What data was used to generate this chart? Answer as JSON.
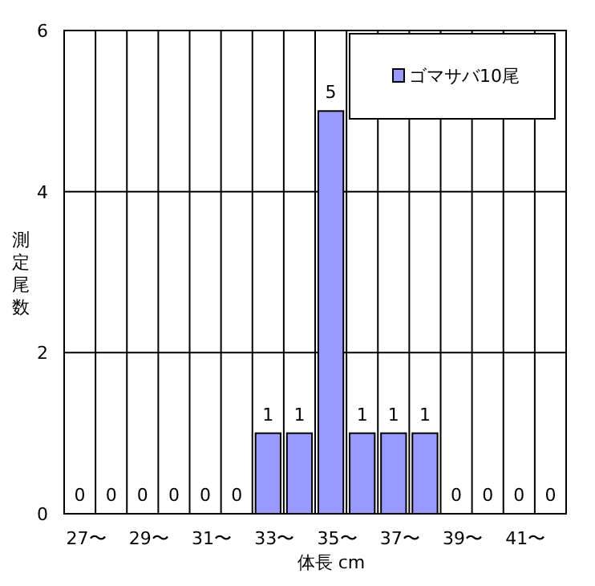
{
  "chart_data": {
    "type": "bar",
    "xlabel": "体長 cm",
    "ylabel": "測定尾数",
    "categories": [
      "27〜",
      null,
      "29〜",
      null,
      "31〜",
      null,
      "33〜",
      null,
      "35〜",
      null,
      "37〜",
      null,
      "39〜",
      null,
      "41〜",
      null
    ],
    "series": [
      {
        "name": "ゴマサバ10尾",
        "color": "#9999ff",
        "values": [
          0,
          0,
          0,
          0,
          0,
          0,
          1,
          1,
          5,
          1,
          1,
          1,
          0,
          0,
          0,
          0
        ]
      }
    ],
    "ylim": [
      0,
      6
    ],
    "yticks": [
      0,
      2,
      4,
      6
    ],
    "grid": true,
    "legend": "top right",
    "data_labels": true
  }
}
